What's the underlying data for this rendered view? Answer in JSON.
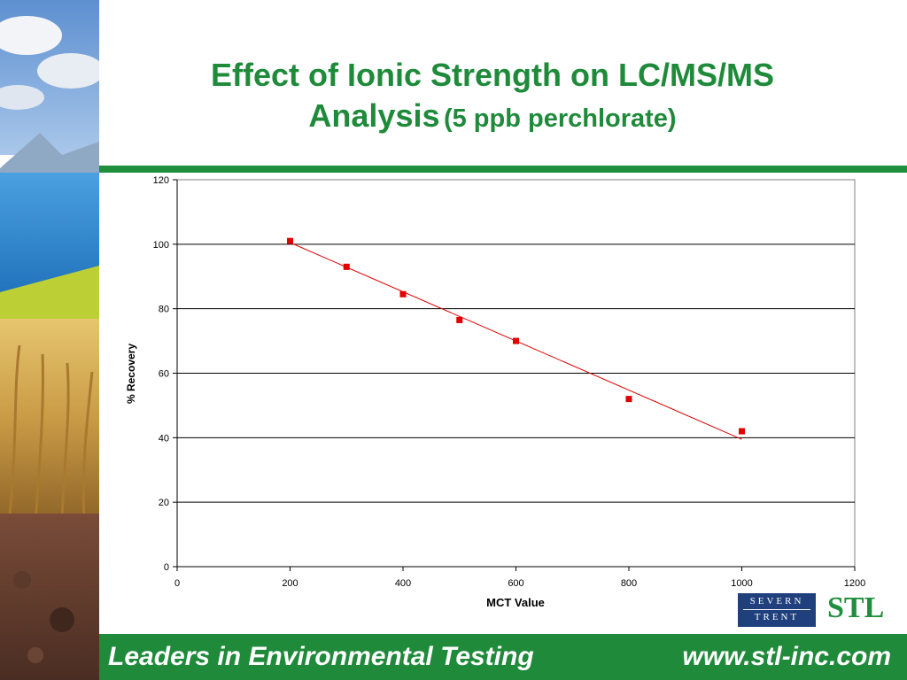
{
  "title": {
    "line1": "Effect of Ionic Strength on LC/MS/MS",
    "line2": "Analysis",
    "sub": "(5 ppb perchlorate)"
  },
  "chart_data": {
    "type": "scatter",
    "xlabel": "MCT Value",
    "ylabel": "% Recovery",
    "xlim": [
      0,
      1200
    ],
    "ylim": [
      0,
      120
    ],
    "xticks": [
      "0",
      "200",
      "400",
      "600",
      "800",
      "1000",
      "1200"
    ],
    "yticks": [
      "0",
      "20",
      "40",
      "60",
      "80",
      "100",
      "120"
    ],
    "grid": "horizontal",
    "series": [
      {
        "x": [
          200,
          300,
          400,
          500,
          600,
          800,
          1000
        ],
        "y": [
          101,
          93,
          84.5,
          76.5,
          70,
          52,
          42
        ],
        "color": "#e00000"
      }
    ],
    "trendline": {
      "x": [
        200,
        1000
      ],
      "y": [
        100.5,
        39.5
      ],
      "color": "#e00000"
    }
  },
  "footer": {
    "left": "Leaders in Environmental Testing",
    "right": "www.stl-inc.com"
  },
  "logos": {
    "severn": "SEVERN",
    "trent": "TRENT",
    "stl": "STL"
  },
  "colors": {
    "brand_green": "#1e8a3a",
    "brand_blue": "#1f3f7d"
  }
}
